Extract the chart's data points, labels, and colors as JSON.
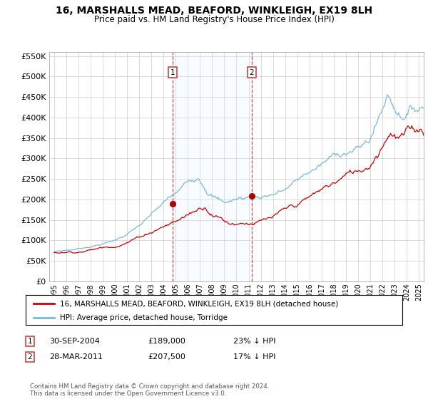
{
  "title": "16, MARSHALLS MEAD, BEAFORD, WINKLEIGH, EX19 8LH",
  "subtitle": "Price paid vs. HM Land Registry's House Price Index (HPI)",
  "legend_line1": "16, MARSHALLS MEAD, BEAFORD, WINKLEIGH, EX19 8LH (detached house)",
  "legend_line2": "HPI: Average price, detached house, Torridge",
  "annotation1_date": "30-SEP-2004",
  "annotation1_price": "£189,000",
  "annotation1_hpi": "23% ↓ HPI",
  "annotation2_date": "28-MAR-2011",
  "annotation2_price": "£207,500",
  "annotation2_hpi": "17% ↓ HPI",
  "footnote": "Contains HM Land Registry data © Crown copyright and database right 2024.\nThis data is licensed under the Open Government Licence v3.0.",
  "transaction1_x": 2004.75,
  "transaction1_y": 189000,
  "transaction2_x": 2011.25,
  "transaction2_y": 207500,
  "hpi_color": "#7ab8d9",
  "price_color": "#cc0000",
  "marker_color": "#aa0000",
  "shade_color": "#ddeeff",
  "background_color": "#ffffff",
  "grid_color": "#cccccc",
  "ylim": [
    0,
    560000
  ],
  "xlim_start": 1994.6,
  "xlim_end": 2025.4,
  "yticks": [
    0,
    50000,
    100000,
    150000,
    200000,
    250000,
    300000,
    350000,
    400000,
    450000,
    500000,
    550000
  ],
  "xticks": [
    1995,
    1996,
    1997,
    1998,
    1999,
    2000,
    2001,
    2002,
    2003,
    2004,
    2005,
    2006,
    2007,
    2008,
    2009,
    2010,
    2011,
    2012,
    2013,
    2014,
    2015,
    2016,
    2017,
    2018,
    2019,
    2020,
    2021,
    2022,
    2023,
    2024,
    2025
  ]
}
